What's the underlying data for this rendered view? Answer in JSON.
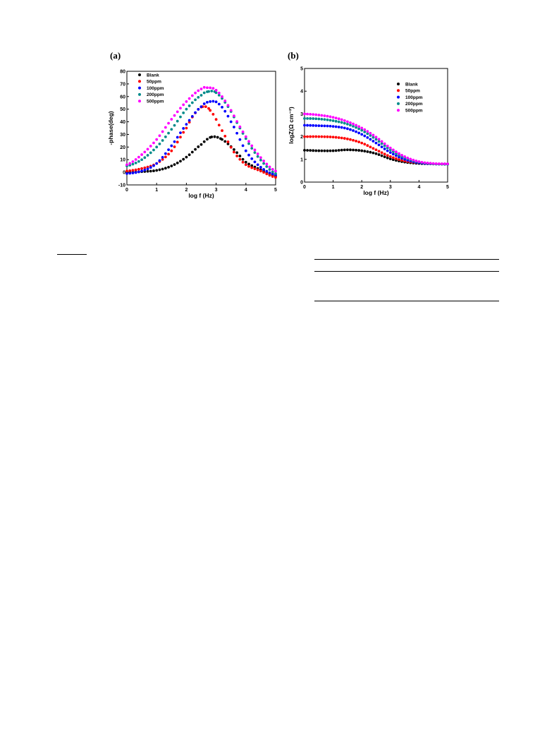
{
  "chart_data": [
    {
      "panel": "(a)",
      "type": "scatter",
      "xlabel": "log f (Hz)",
      "ylabel": "-phase(deg)",
      "xlim": [
        0,
        5
      ],
      "ylim": [
        -10,
        80
      ],
      "xticks": [
        "0",
        "1",
        "2",
        "3",
        "4",
        "5"
      ],
      "yticks": [
        "-10",
        "0",
        "10",
        "20",
        "30",
        "40",
        "50",
        "60",
        "70",
        "80"
      ],
      "legend_position": "top-left",
      "series": [
        {
          "name": "Blank",
          "color": "#000000",
          "x": [
            0,
            0.5,
            1,
            1.5,
            2,
            2.5,
            2.85,
            3.2,
            3.6,
            4,
            4.5,
            5
          ],
          "y": [
            0,
            0.5,
            1.5,
            5,
            12,
            22,
            28,
            26,
            18,
            8,
            2,
            -3
          ]
        },
        {
          "name": "50ppm",
          "color": "#ff0000",
          "x": [
            0,
            0.5,
            1,
            1.5,
            2,
            2.3,
            2.55,
            2.8,
            3.2,
            3.6,
            4,
            4.5,
            5
          ],
          "y": [
            1,
            3,
            7,
            17,
            35,
            47,
            52,
            49,
            33,
            16,
            6,
            1,
            -4
          ]
        },
        {
          "name": "100ppm",
          "color": "#0000ff",
          "x": [
            0,
            0.5,
            1,
            1.5,
            2,
            2.5,
            2.8,
            3.1,
            3.5,
            4,
            4.5,
            5
          ],
          "y": [
            -1,
            1,
            7,
            21,
            38,
            52,
            56,
            54,
            40,
            17,
            4,
            -2
          ]
        },
        {
          "name": "200ppm",
          "color": "#008b8b",
          "x": [
            0,
            0.5,
            1,
            1.5,
            2,
            2.5,
            2.75,
            3,
            3.4,
            3.8,
            4.2,
            4.6,
            5
          ],
          "y": [
            5,
            10,
            20,
            34,
            50,
            61,
            64,
            63,
            52,
            35,
            19,
            7,
            -1
          ]
        },
        {
          "name": "500ppm",
          "color": "#ff00ff",
          "x": [
            0,
            0.5,
            1,
            1.5,
            2,
            2.5,
            2.7,
            3,
            3.4,
            3.8,
            4.2,
            4.6,
            5
          ],
          "y": [
            6,
            14,
            26,
            42,
            56,
            66,
            67,
            65,
            53,
            36,
            21,
            9,
            1
          ]
        }
      ]
    },
    {
      "panel": "(b)",
      "type": "scatter",
      "xlabel": "log f (Hz)",
      "ylabel": "logZ(Ω cm⁻²)",
      "xlim": [
        0,
        5
      ],
      "ylim": [
        0,
        5
      ],
      "xticks": [
        "0",
        "1",
        "2",
        "3",
        "4",
        "5"
      ],
      "yticks": [
        "0",
        "1",
        "2",
        "3",
        "4",
        "5"
      ],
      "legend_position": "top-right",
      "series": [
        {
          "name": "Blank",
          "color": "#000000",
          "x": [
            0,
            0.5,
            1,
            1.5,
            2,
            2.5,
            3,
            3.5,
            4,
            4.5,
            5
          ],
          "y": [
            1.4,
            1.38,
            1.38,
            1.42,
            1.38,
            1.25,
            1.02,
            0.88,
            0.82,
            0.8,
            0.8
          ]
        },
        {
          "name": "50ppm",
          "color": "#ff0000",
          "x": [
            0,
            0.5,
            1,
            1.5,
            2,
            2.5,
            3,
            3.5,
            4,
            4.5,
            5
          ],
          "y": [
            2.0,
            2.0,
            1.98,
            1.9,
            1.72,
            1.42,
            1.12,
            0.93,
            0.85,
            0.8,
            0.8
          ]
        },
        {
          "name": "100ppm",
          "color": "#0000ff",
          "x": [
            0,
            0.5,
            1,
            1.5,
            2,
            2.5,
            3,
            3.5,
            4,
            4.5,
            5
          ],
          "y": [
            2.5,
            2.48,
            2.45,
            2.35,
            2.1,
            1.72,
            1.3,
            1.0,
            0.85,
            0.8,
            0.8
          ]
        },
        {
          "name": "200ppm",
          "color": "#008b8b",
          "x": [
            0,
            0.5,
            1,
            1.5,
            2,
            2.5,
            3,
            3.5,
            4,
            4.5,
            5
          ],
          "y": [
            2.8,
            2.78,
            2.7,
            2.55,
            2.28,
            1.88,
            1.42,
            1.07,
            0.88,
            0.8,
            0.78
          ]
        },
        {
          "name": "500ppm",
          "color": "#ff00ff",
          "x": [
            0,
            0.5,
            1,
            1.5,
            2,
            2.5,
            3,
            3.5,
            4,
            4.5,
            5
          ],
          "y": [
            3.0,
            2.95,
            2.85,
            2.66,
            2.38,
            1.98,
            1.5,
            1.12,
            0.9,
            0.82,
            0.8
          ]
        }
      ]
    }
  ]
}
